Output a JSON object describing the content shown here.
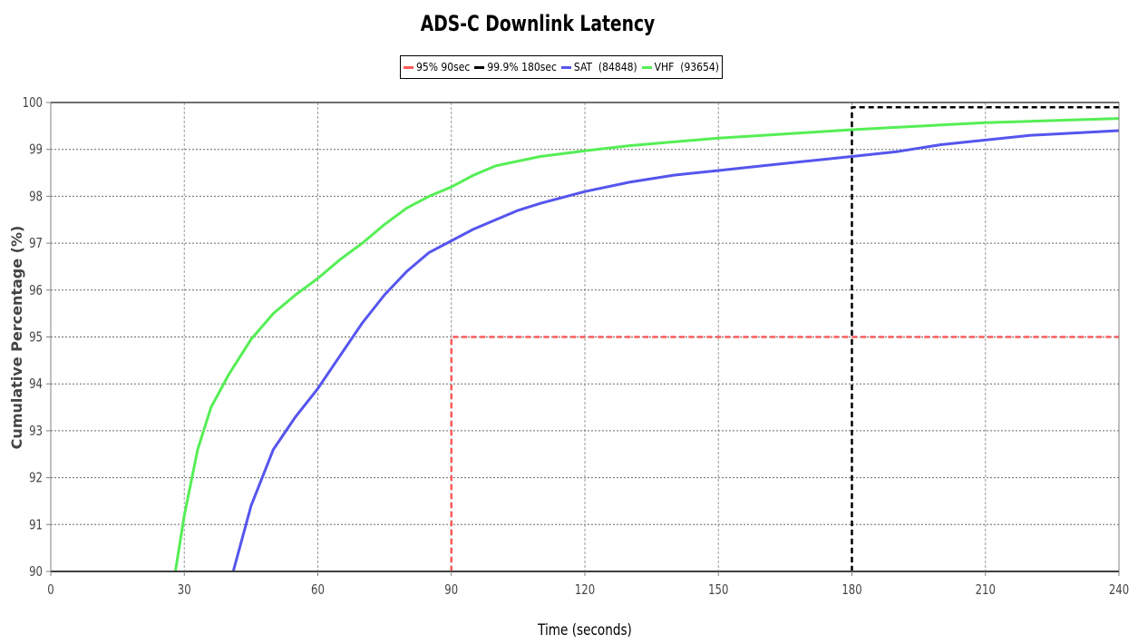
{
  "chart_data": {
    "type": "line",
    "title": "ADS-C Downlink Latency",
    "xlabel": "Time (seconds)",
    "ylabel": "Cumulative Percentage (%)",
    "xlim": [
      0,
      240
    ],
    "ylim": [
      90,
      100
    ],
    "xticks": [
      "0",
      "30",
      "60",
      "90",
      "120",
      "150",
      "180",
      "210",
      "240"
    ],
    "yticks": [
      "90",
      "91",
      "92",
      "93",
      "94",
      "95",
      "96",
      "97",
      "98",
      "99",
      "100"
    ],
    "grid": true,
    "legend_position": "top",
    "series": [
      {
        "name": "95% 90sec",
        "color": "#ff5a5a",
        "style": "dashed",
        "x": [
          90,
          90,
          240
        ],
        "y": [
          90,
          95,
          95
        ]
      },
      {
        "name": "99.9% 180sec",
        "color": "#000000",
        "style": "dashed",
        "x": [
          180,
          180,
          240
        ],
        "y": [
          90,
          99.9,
          99.9
        ]
      },
      {
        "name": "SAT  (84848)",
        "color": "#5555ee",
        "style": "solid",
        "x": [
          41,
          45,
          50,
          55,
          60,
          65,
          70,
          75,
          80,
          85,
          90,
          95,
          100,
          105,
          110,
          120,
          130,
          140,
          150,
          160,
          170,
          180,
          190,
          200,
          210,
          220,
          230,
          240
        ],
        "y": [
          90,
          91.4,
          92.6,
          93.3,
          93.9,
          94.6,
          95.3,
          95.9,
          96.4,
          96.8,
          97.05,
          97.3,
          97.5,
          97.7,
          97.85,
          98.1,
          98.3,
          98.45,
          98.55,
          98.65,
          98.75,
          98.85,
          98.95,
          99.1,
          99.2,
          99.3,
          99.35,
          99.4
        ]
      },
      {
        "name": "VHF  (93654)",
        "color": "#55ee55",
        "style": "solid",
        "x": [
          28,
          30,
          33,
          36,
          40,
          45,
          50,
          55,
          60,
          65,
          70,
          75,
          80,
          85,
          90,
          95,
          100,
          110,
          120,
          130,
          140,
          150,
          160,
          170,
          180,
          190,
          200,
          210,
          220,
          230,
          240
        ],
        "y": [
          90,
          91.2,
          92.6,
          93.5,
          94.2,
          94.95,
          95.5,
          95.9,
          96.25,
          96.65,
          97.0,
          97.4,
          97.75,
          98.0,
          98.2,
          98.45,
          98.65,
          98.85,
          98.97,
          99.08,
          99.16,
          99.24,
          99.3,
          99.36,
          99.42,
          99.47,
          99.52,
          99.57,
          99.6,
          99.63,
          99.66
        ]
      }
    ]
  }
}
